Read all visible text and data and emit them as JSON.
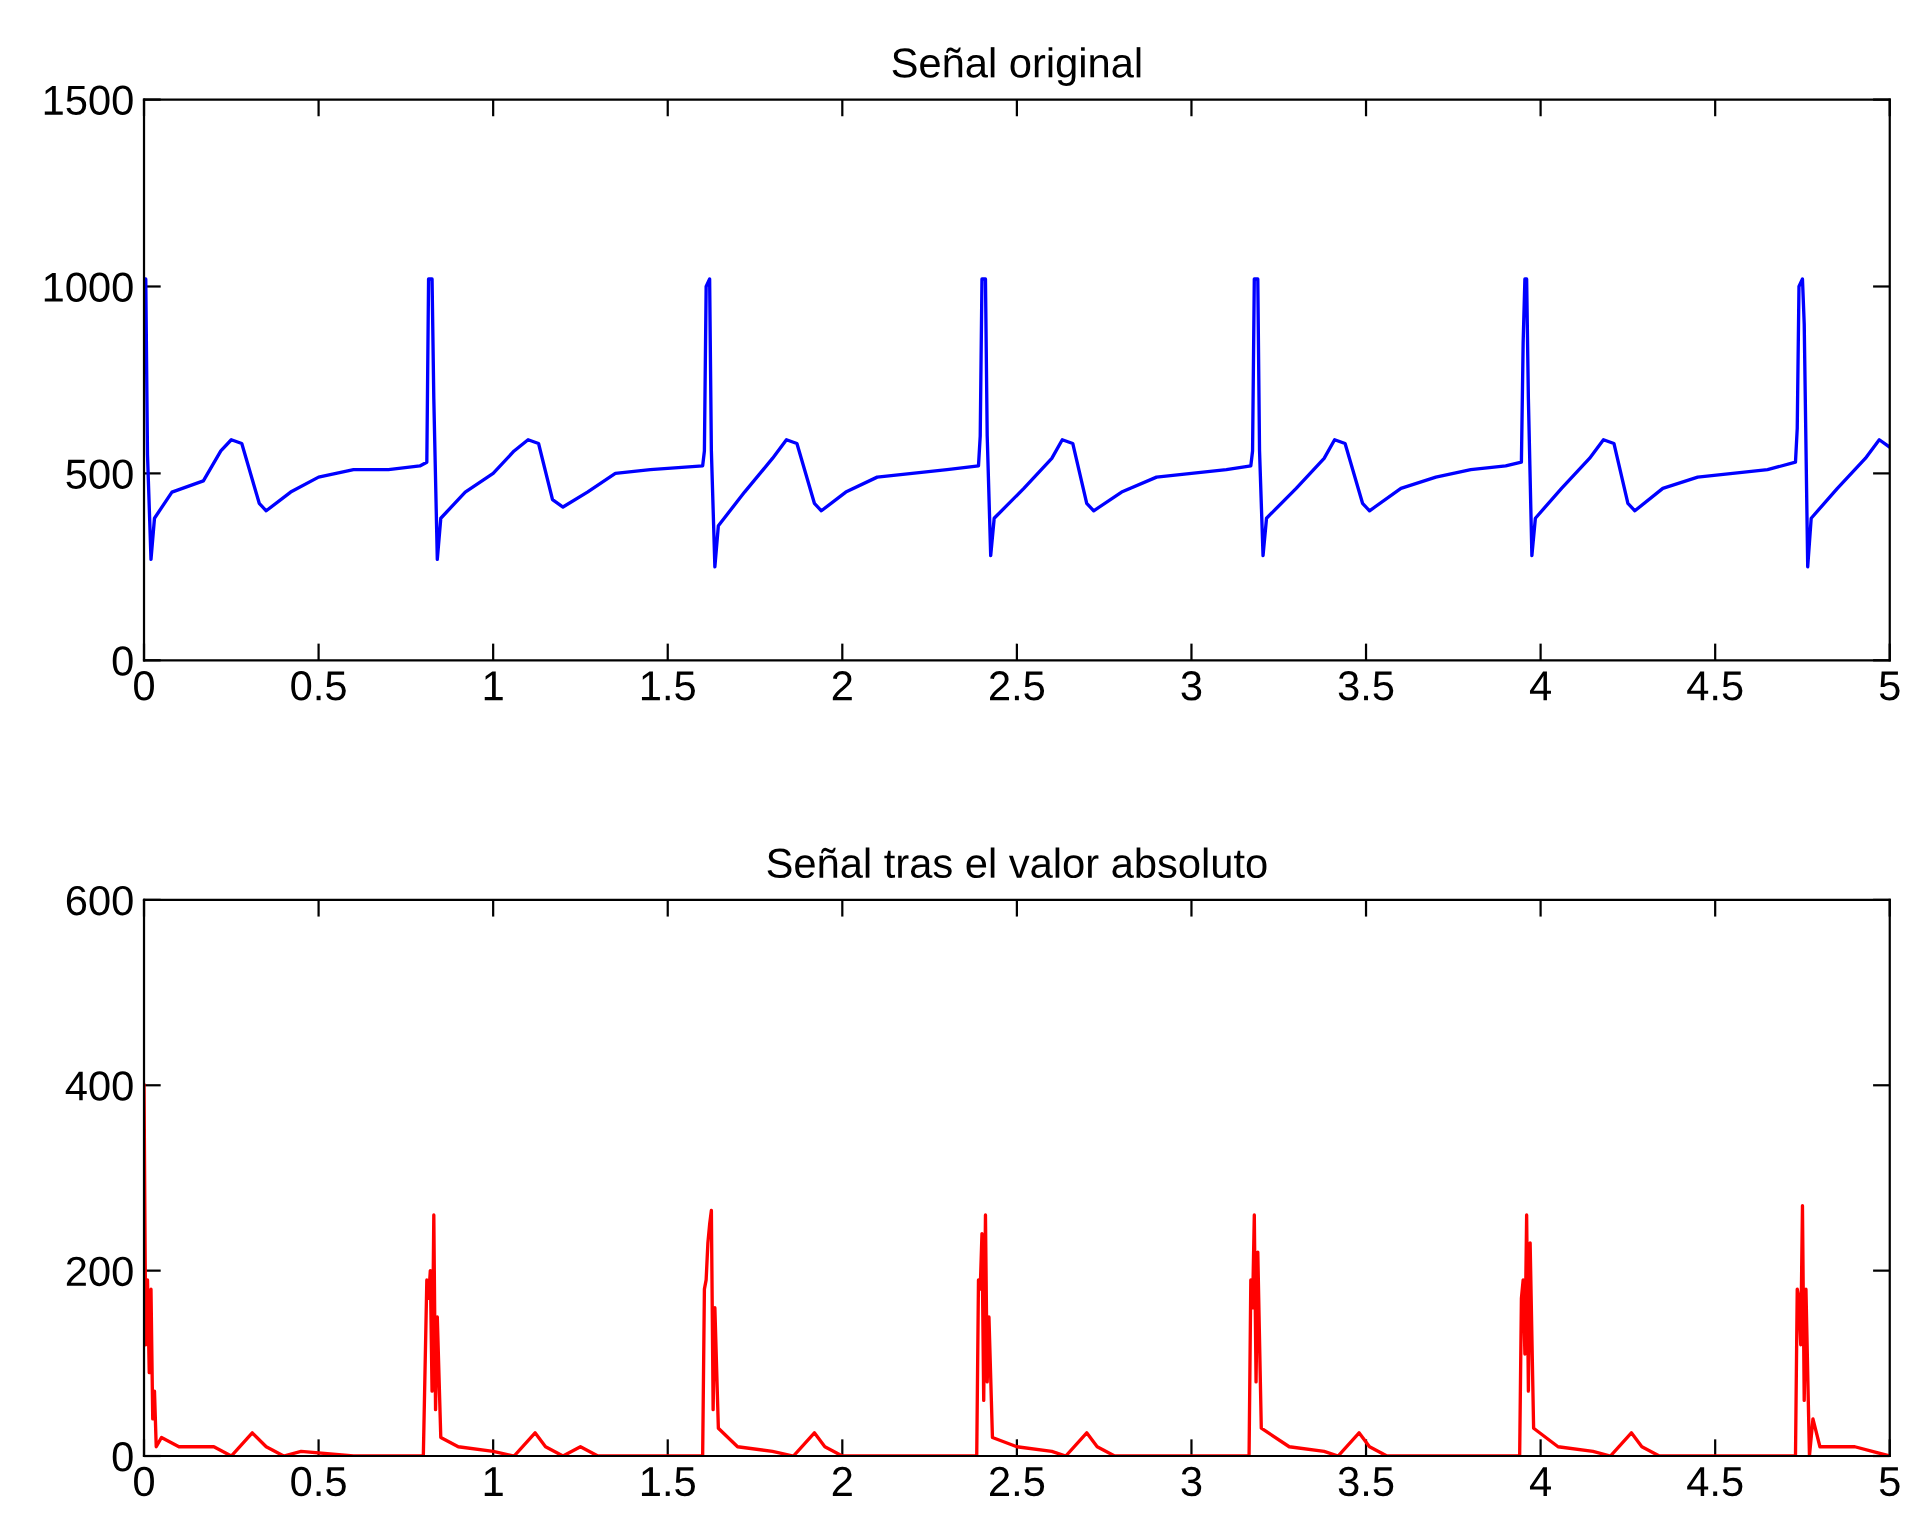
{
  "chart_data": [
    {
      "type": "line",
      "title": "Señal original",
      "xlim": [
        0,
        5
      ],
      "ylim": [
        0,
        1500
      ],
      "xticks": [
        0,
        0.5,
        1,
        1.5,
        2,
        2.5,
        3,
        3.5,
        4,
        4.5,
        5
      ],
      "yticks": [
        0,
        500,
        1000,
        1500
      ],
      "series": [
        {
          "color": "#0000ff",
          "x": [
            0,
            0.005,
            0.01,
            0.02,
            0.03,
            0.08,
            0.17,
            0.22,
            0.25,
            0.28,
            0.33,
            0.35,
            0.42,
            0.5,
            0.6,
            0.7,
            0.79,
            0.81,
            0.815,
            0.825,
            0.83,
            0.84,
            0.85,
            0.92,
            1.0,
            1.06,
            1.1,
            1.13,
            1.17,
            1.2,
            1.27,
            1.35,
            1.45,
            1.6,
            1.605,
            1.61,
            1.62,
            1.625,
            1.635,
            1.645,
            1.72,
            1.8,
            1.84,
            1.87,
            1.92,
            1.94,
            2.01,
            2.1,
            2.2,
            2.3,
            2.39,
            2.395,
            2.4,
            2.41,
            2.415,
            2.425,
            2.435,
            2.52,
            2.6,
            2.63,
            2.66,
            2.7,
            2.72,
            2.8,
            2.9,
            3.0,
            3.1,
            3.17,
            3.175,
            3.18,
            3.19,
            3.195,
            3.205,
            3.215,
            3.3,
            3.38,
            3.41,
            3.44,
            3.49,
            3.51,
            3.6,
            3.7,
            3.8,
            3.9,
            3.945,
            3.95,
            3.955,
            3.96,
            3.965,
            3.975,
            3.985,
            4.06,
            4.14,
            4.18,
            4.21,
            4.25,
            4.27,
            4.35,
            4.45,
            4.55,
            4.65,
            4.73,
            4.735,
            4.74,
            4.75,
            4.755,
            4.765,
            4.775,
            4.85,
            4.93,
            4.97,
            5.0
          ],
          "values": [
            1020,
            1020,
            550,
            270,
            380,
            450,
            480,
            560,
            590,
            580,
            420,
            400,
            450,
            490,
            510,
            510,
            520,
            530,
            1020,
            1020,
            700,
            270,
            380,
            450,
            500,
            560,
            590,
            580,
            430,
            410,
            450,
            500,
            510,
            520,
            560,
            1000,
            1020,
            560,
            250,
            360,
            450,
            540,
            590,
            580,
            420,
            400,
            450,
            490,
            500,
            510,
            520,
            600,
            1020,
            1020,
            600,
            280,
            380,
            460,
            540,
            590,
            580,
            420,
            400,
            450,
            490,
            500,
            510,
            520,
            560,
            1020,
            1020,
            560,
            280,
            380,
            460,
            540,
            590,
            580,
            420,
            400,
            460,
            490,
            510,
            520,
            530,
            850,
            1020,
            1020,
            700,
            280,
            380,
            460,
            540,
            590,
            580,
            420,
            400,
            460,
            490,
            500,
            510,
            530,
            620,
            1000,
            1020,
            900,
            250,
            380,
            460,
            540,
            590,
            570
          ]
        }
      ]
    },
    {
      "type": "line",
      "title": "Señal tras el valor absoluto",
      "xlim": [
        0,
        5
      ],
      "ylim": [
        0,
        600
      ],
      "xticks": [
        0,
        0.5,
        1,
        1.5,
        2,
        2.5,
        3,
        3.5,
        4,
        4.5,
        5
      ],
      "yticks": [
        0,
        200,
        400,
        600
      ],
      "series": [
        {
          "color": "#ff0000",
          "x": [
            0,
            0.005,
            0.01,
            0.015,
            0.02,
            0.025,
            0.03,
            0.035,
            0.05,
            0.1,
            0.2,
            0.25,
            0.31,
            0.35,
            0.4,
            0.45,
            0.6,
            0.78,
            0.8,
            0.81,
            0.815,
            0.82,
            0.825,
            0.83,
            0.835,
            0.84,
            0.85,
            0.9,
            1.0,
            1.06,
            1.12,
            1.15,
            1.2,
            1.25,
            1.3,
            1.6,
            1.605,
            1.61,
            1.615,
            1.62,
            1.625,
            1.63,
            1.635,
            1.645,
            1.7,
            1.8,
            1.86,
            1.92,
            1.95,
            2.0,
            2.3,
            2.385,
            2.39,
            2.395,
            2.4,
            2.405,
            2.41,
            2.415,
            2.42,
            2.43,
            2.5,
            2.6,
            2.64,
            2.7,
            2.73,
            2.78,
            3.1,
            3.165,
            3.17,
            3.175,
            3.18,
            3.185,
            3.19,
            3.2,
            3.28,
            3.38,
            3.42,
            3.48,
            3.51,
            3.56,
            3.9,
            3.94,
            3.945,
            3.95,
            3.955,
            3.96,
            3.965,
            3.97,
            3.98,
            4.05,
            4.15,
            4.2,
            4.26,
            4.29,
            4.34,
            4.7,
            4.73,
            4.735,
            4.74,
            4.745,
            4.75,
            4.755,
            4.76,
            4.77,
            4.78,
            4.8,
            4.9,
            4.95,
            5.0
          ],
          "values": [
            400,
            120,
            190,
            90,
            180,
            40,
            70,
            10,
            20,
            10,
            10,
            0,
            25,
            10,
            0,
            5,
            0,
            0,
            0,
            190,
            170,
            200,
            70,
            260,
            50,
            150,
            20,
            10,
            5,
            0,
            25,
            10,
            0,
            10,
            0,
            0,
            180,
            190,
            230,
            250,
            265,
            50,
            160,
            30,
            10,
            5,
            0,
            25,
            10,
            0,
            0,
            0,
            190,
            180,
            240,
            60,
            260,
            80,
            150,
            20,
            10,
            5,
            0,
            25,
            10,
            0,
            0,
            0,
            190,
            160,
            260,
            80,
            220,
            30,
            10,
            5,
            0,
            25,
            10,
            0,
            0,
            0,
            170,
            190,
            110,
            260,
            70,
            230,
            30,
            10,
            5,
            0,
            25,
            10,
            0,
            0,
            0,
            180,
            170,
            120,
            270,
            60,
            180,
            0,
            40,
            10,
            10,
            5,
            0
          ]
        }
      ]
    }
  ]
}
